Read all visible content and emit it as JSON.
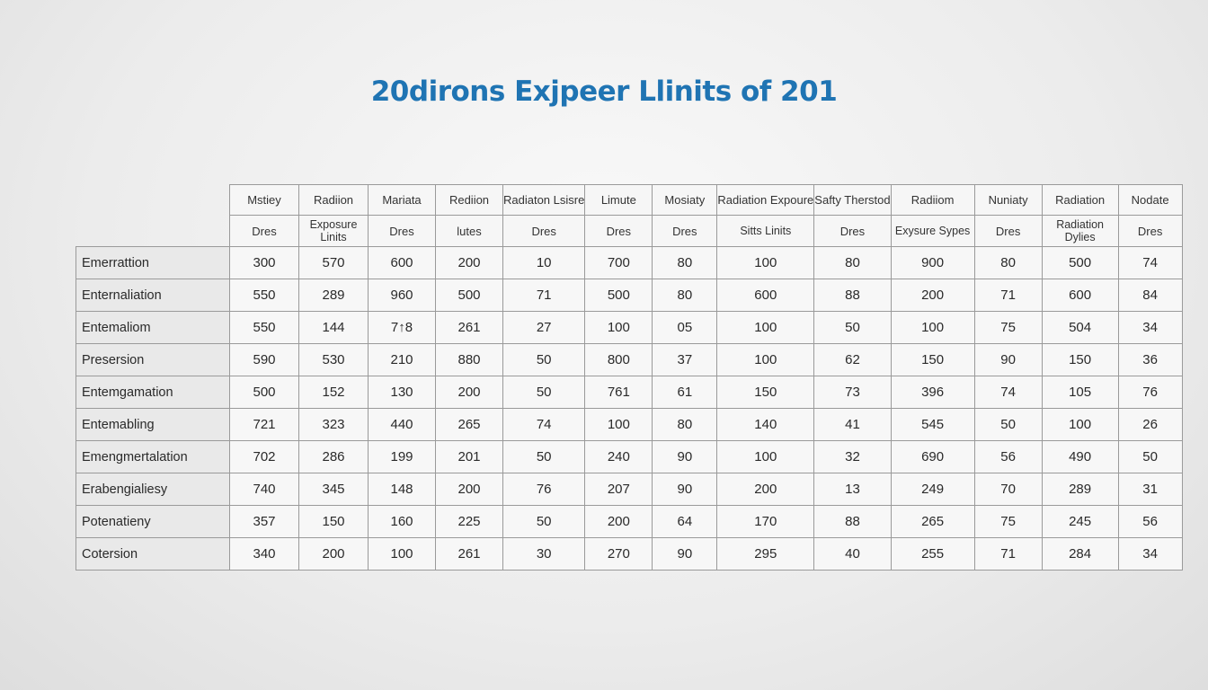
{
  "chart_data": {
    "type": "table",
    "title": "20dirons Exjpeer Llinits of 201",
    "header_row1": [
      "Mstiey",
      "Radiion",
      "Mariata",
      "Rediion",
      "Radiaton Lsisre",
      "Limute",
      "Mosiaty",
      "Radiation Expoure",
      "Safty Therstod",
      "Radiiom",
      "Nuniaty",
      "Radiation",
      "Nodate"
    ],
    "header_row2": [
      "Dres",
      "Exposure Linits",
      "Dres",
      "lutes",
      "Dres",
      "Dres",
      "Dres",
      "Sitts Linits",
      "Dres",
      "Exysure Sypes",
      "Dres",
      "Radiation Dylies",
      "Dres"
    ],
    "rows": [
      {
        "label": "Emerrattion",
        "values": [
          "300",
          "570",
          "600",
          "200",
          "10",
          "700",
          "80",
          "100",
          "80",
          "900",
          "80",
          "500",
          "74"
        ]
      },
      {
        "label": "Enternaliation",
        "values": [
          "550",
          "289",
          "960",
          "500",
          "71",
          "500",
          "80",
          "600",
          "88",
          "200",
          "71",
          "600",
          "84"
        ]
      },
      {
        "label": "Entemaliom",
        "values": [
          "550",
          "144",
          "7↑8",
          "261",
          "27",
          "100",
          "05",
          "100",
          "50",
          "100",
          "75",
          "504",
          "34"
        ]
      },
      {
        "label": "Presersion",
        "values": [
          "590",
          "530",
          "210",
          "880",
          "50",
          "800",
          "37",
          "100",
          "62",
          "150",
          "90",
          "150",
          "36"
        ]
      },
      {
        "label": "Entemgamation",
        "values": [
          "500",
          "152",
          "130",
          "200",
          "50",
          "761",
          "61",
          "150",
          "73",
          "396",
          "74",
          "105",
          "76"
        ]
      },
      {
        "label": "Entemabling",
        "values": [
          "721",
          "323",
          "440",
          "265",
          "74",
          "100",
          "80",
          "140",
          "41",
          "545",
          "50",
          "100",
          "26"
        ]
      },
      {
        "label": "Emengmertalation",
        "values": [
          "702",
          "286",
          "199",
          "201",
          "50",
          "240",
          "90",
          "100",
          "32",
          "690",
          "56",
          "490",
          "50"
        ]
      },
      {
        "label": "Erabengialiesy",
        "values": [
          "740",
          "345",
          "148",
          "200",
          "76",
          "207",
          "90",
          "200",
          "13",
          "249",
          "70",
          "289",
          "31"
        ]
      },
      {
        "label": "Potenatieny",
        "values": [
          "357",
          "150",
          "160",
          "225",
          "50",
          "200",
          "64",
          "170",
          "88",
          "265",
          "75",
          "245",
          "56"
        ]
      },
      {
        "label": "Cotersion",
        "values": [
          "340",
          "200",
          "100",
          "261",
          "30",
          "270",
          "90",
          "295",
          "40",
          "255",
          "71",
          "284",
          "34"
        ]
      }
    ]
  },
  "colors": {
    "title": "#1f74b3",
    "grid": "#9a9a9a",
    "label_bg": "#e9e9e9"
  }
}
